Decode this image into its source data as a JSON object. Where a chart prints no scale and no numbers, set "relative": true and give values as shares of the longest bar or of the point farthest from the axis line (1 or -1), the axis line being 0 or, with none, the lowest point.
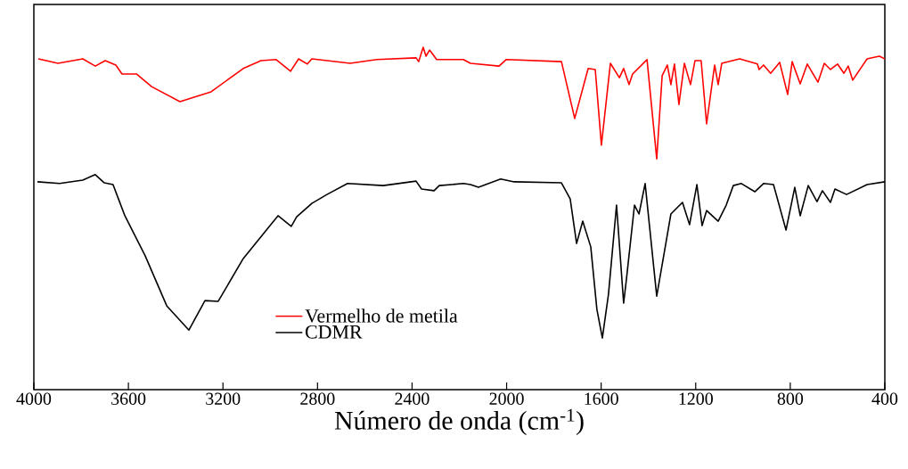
{
  "chart_data": {
    "type": "line",
    "xlabel": "Número de onda (cm$^{-1}$)",
    "relative": true,
    "xlim": [
      4000,
      400
    ],
    "xticks": [
      4000,
      3600,
      3200,
      2800,
      2400,
      2000,
      1600,
      1200,
      800,
      400
    ],
    "legend": "bottom left",
    "grid": false,
    "marker": "none",
    "line_style": "solid",
    "series": [
      {
        "name": "Vermelho de metila",
        "color": "#ff0000",
        "x": [
          3981,
          3898,
          3793,
          3740,
          3698,
          3653,
          3627,
          3566,
          3502,
          3382,
          3250,
          3114,
          3039,
          2975,
          2914,
          2880,
          2843,
          2824,
          2662,
          2549,
          2383,
          2372,
          2353,
          2341,
          2326,
          2296,
          2183,
          2153,
          2032,
          2002,
          1768,
          1712,
          1655,
          1625,
          1599,
          1561,
          1523,
          1505,
          1482,
          1467,
          1406,
          1365,
          1342,
          1320,
          1305,
          1290,
          1271,
          1248,
          1222,
          1203,
          1177,
          1154,
          1120,
          1105,
          1090,
          1014,
          939,
          932,
          913,
          883,
          845,
          811,
          792,
          758,
          728,
          683,
          656,
          630,
          600,
          573,
          555,
          536,
          475,
          423,
          400
        ],
        "values": [
          0.966,
          0.953,
          0.966,
          0.945,
          0.961,
          0.948,
          0.922,
          0.922,
          0.885,
          0.841,
          0.87,
          0.938,
          0.961,
          0.964,
          0.93,
          0.966,
          0.951,
          0.966,
          0.953,
          0.964,
          0.969,
          0.958,
          1.0,
          0.974,
          0.992,
          0.964,
          0.964,
          0.953,
          0.945,
          0.964,
          0.958,
          0.792,
          0.938,
          0.935,
          0.714,
          0.953,
          0.911,
          0.938,
          0.891,
          0.922,
          0.964,
          0.674,
          0.917,
          0.948,
          0.891,
          0.951,
          0.833,
          0.953,
          0.891,
          0.961,
          0.961,
          0.776,
          0.948,
          0.891,
          0.953,
          0.966,
          0.951,
          0.935,
          0.948,
          0.924,
          0.956,
          0.862,
          0.958,
          0.893,
          0.951,
          0.898,
          0.953,
          0.935,
          0.951,
          0.924,
          0.945,
          0.904,
          0.966,
          0.974,
          0.966
        ]
      },
      {
        "name": "CDMR",
        "color": "#000000",
        "x": [
          3985,
          3891,
          3793,
          3740,
          3702,
          3665,
          3642,
          3615,
          3529,
          3438,
          3344,
          3276,
          3220,
          3114,
          2967,
          2911,
          2888,
          2824,
          2760,
          2673,
          2522,
          2383,
          2360,
          2307,
          2285,
          2183,
          2153,
          2119,
          2025,
          1968,
          1768,
          1731,
          1704,
          1678,
          1644,
          1618,
          1595,
          1569,
          1535,
          1505,
          1493,
          1459,
          1440,
          1414,
          1365,
          1305,
          1256,
          1226,
          1195,
          1173,
          1154,
          1105,
          1071,
          1041,
          1007,
          950,
          913,
          871,
          818,
          781,
          758,
          724,
          687,
          664,
          630,
          611,
          562,
          475,
          400
        ],
        "values": [
          0.607,
          0.602,
          0.612,
          0.628,
          0.604,
          0.599,
          0.557,
          0.508,
          0.391,
          0.245,
          0.174,
          0.26,
          0.258,
          0.383,
          0.508,
          0.477,
          0.505,
          0.544,
          0.57,
          0.602,
          0.596,
          0.609,
          0.586,
          0.581,
          0.596,
          0.602,
          0.599,
          0.591,
          0.615,
          0.607,
          0.604,
          0.557,
          0.427,
          0.492,
          0.417,
          0.234,
          0.151,
          0.279,
          0.539,
          0.253,
          0.323,
          0.539,
          0.513,
          0.602,
          0.273,
          0.513,
          0.547,
          0.482,
          0.599,
          0.479,
          0.523,
          0.492,
          0.539,
          0.596,
          0.602,
          0.578,
          0.602,
          0.599,
          0.466,
          0.591,
          0.508,
          0.596,
          0.549,
          0.581,
          0.547,
          0.586,
          0.57,
          0.599,
          0.607
        ]
      }
    ]
  }
}
